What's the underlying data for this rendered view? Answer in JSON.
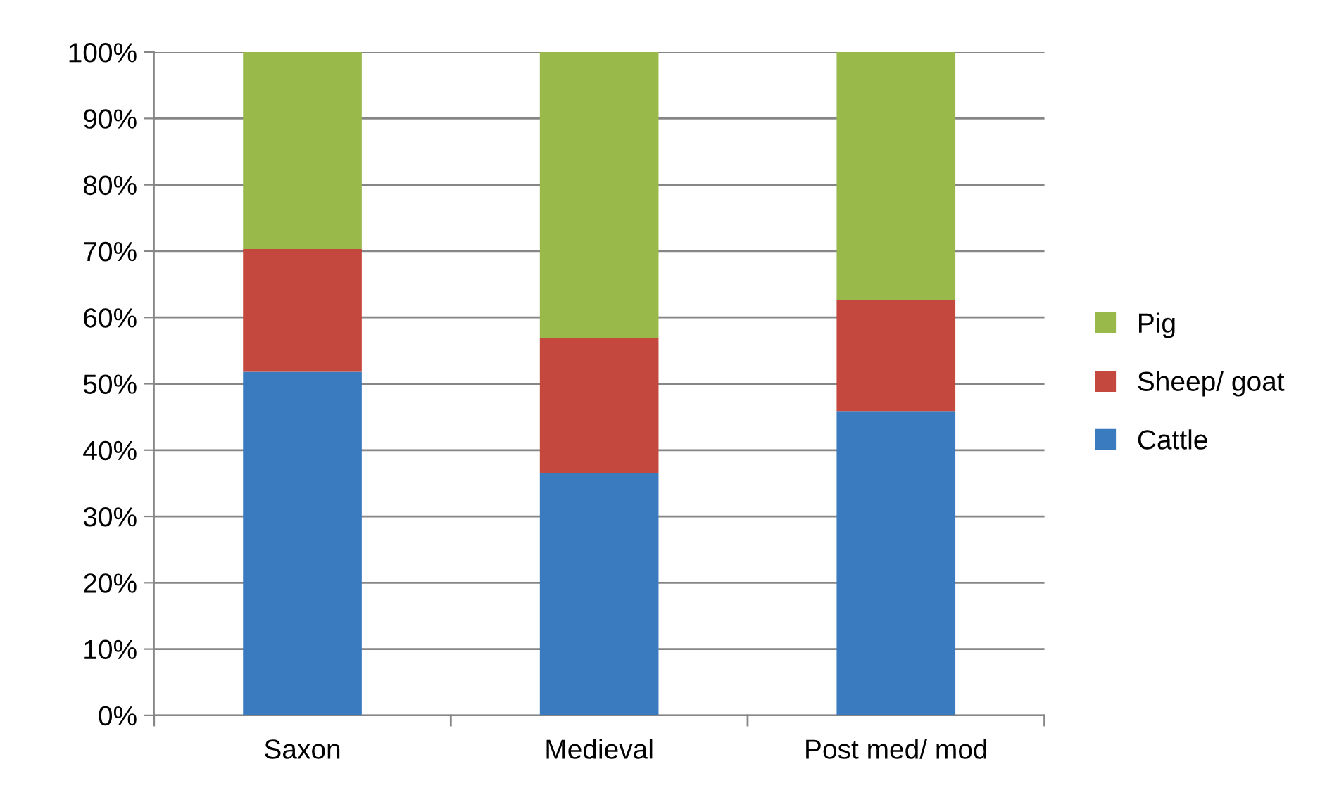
{
  "chart_data": {
    "type": "bar",
    "stacked": true,
    "categories": [
      "Saxon",
      "Medieval",
      "Post med/ mod"
    ],
    "series": [
      {
        "name": "Cattle",
        "color": "#3a7abf",
        "values": [
          51.8,
          36.5,
          45.9
        ]
      },
      {
        "name": "Sheep/ goat",
        "color": "#c4483e",
        "values": [
          18.5,
          20.4,
          16.7
        ]
      },
      {
        "name": "Pig",
        "color": "#99b94b",
        "values": [
          29.7,
          43.1,
          37.4
        ]
      }
    ],
    "ylim": [
      0,
      100
    ],
    "yticks": [
      {
        "value": 0,
        "label": "0%"
      },
      {
        "value": 10,
        "label": "10%"
      },
      {
        "value": 20,
        "label": "20%"
      },
      {
        "value": 30,
        "label": "30%"
      },
      {
        "value": 40,
        "label": "40%"
      },
      {
        "value": 50,
        "label": "50%"
      },
      {
        "value": 60,
        "label": "60%"
      },
      {
        "value": 70,
        "label": "70%"
      },
      {
        "value": 80,
        "label": "80%"
      },
      {
        "value": 90,
        "label": "90%"
      },
      {
        "value": 100,
        "label": "100%"
      }
    ],
    "grid": "y",
    "legend": "right"
  }
}
